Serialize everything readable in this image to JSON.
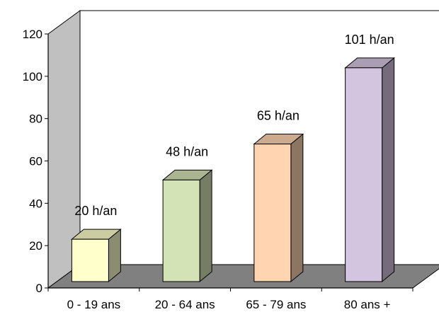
{
  "chart_data": {
    "type": "bar",
    "style": "3d",
    "categories": [
      "0 - 19 ans",
      "20 - 64 ans",
      "65 - 79 ans",
      "80 ans +"
    ],
    "values": [
      20,
      48,
      65,
      101
    ],
    "data_labels": [
      "20 h/an",
      "48 h/an",
      "65 h/an",
      "101 h/an"
    ],
    "ylim": [
      0,
      120
    ],
    "yticks": [
      "0",
      "20",
      "40",
      "60",
      "80",
      "100",
      "120"
    ],
    "grid": false,
    "legend": "none",
    "colors": {
      "bars": [
        "#ffffcc",
        "#d4e3b5",
        "#ffd4b0",
        "#d3c5df"
      ],
      "wall": "#ffffff",
      "side_wall": "#c0c0c0",
      "floor": "#808080"
    }
  }
}
